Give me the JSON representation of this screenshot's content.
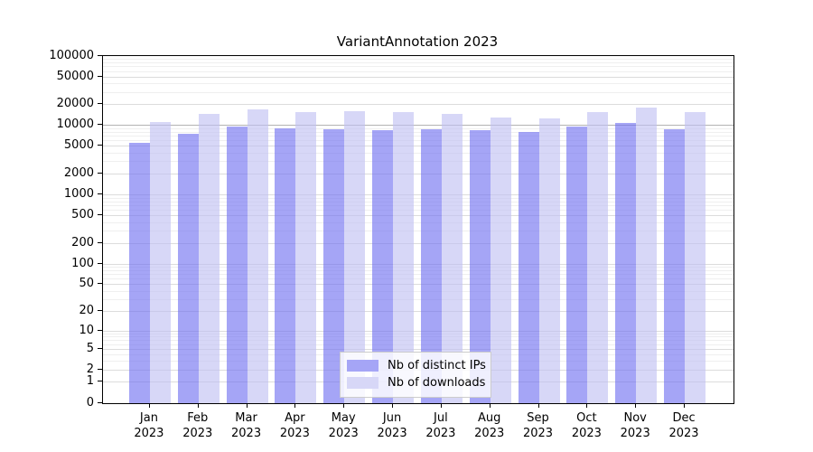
{
  "chart_data": {
    "type": "bar",
    "title": "VariantAnnotation 2023",
    "categories": [
      "Jan",
      "Feb",
      "Mar",
      "Apr",
      "May",
      "Jun",
      "Jul",
      "Aug",
      "Sep",
      "Oct",
      "Nov",
      "Dec"
    ],
    "x_label_line2": "2023",
    "series": [
      {
        "name": "Nb of distinct IPs",
        "color": "#a5a5f6",
        "color_rgba": "rgba(110,110,240,0.62)",
        "values": [
          5600,
          7600,
          9600,
          9100,
          8800,
          8600,
          8800,
          8500,
          8100,
          9600,
          10900,
          8900
        ]
      },
      {
        "name": "Nb of downloads",
        "color": "#d7d7f7",
        "color_rgba": "rgba(190,190,242,0.62)",
        "values": [
          11200,
          14700,
          17100,
          15600,
          16100,
          15600,
          14700,
          13000,
          12600,
          15600,
          18100,
          15600
        ]
      }
    ],
    "y_ticks": [
      0,
      1,
      2,
      5,
      10,
      20,
      50,
      100,
      200,
      500,
      1000,
      2000,
      5000,
      10000,
      20000,
      50000,
      100000
    ],
    "y_scale": "log10(value+1)",
    "ylim": [
      0,
      100000
    ],
    "emphasized_gridline": 10000,
    "grid": "on",
    "legend_position": "bottom-center"
  }
}
